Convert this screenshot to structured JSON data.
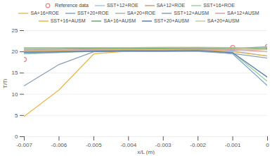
{
  "chart_data": {
    "type": "line",
    "x": [
      -0.007,
      -0.006,
      -0.005,
      -0.004,
      -0.003,
      -0.002,
      -0.001,
      0
    ],
    "x_label": "x/L (m)",
    "y_label": "T/Ti",
    "xlim": [
      -0.007,
      0
    ],
    "xticks": [
      -0.007,
      -0.006,
      -0.005,
      -0.004,
      -0.003,
      -0.002,
      -0.001,
      0
    ],
    "ylim": [
      0,
      25
    ],
    "yticks": [
      0,
      5,
      10,
      15,
      20,
      25
    ],
    "grid": true,
    "legend": "top",
    "series": [
      {
        "name": "Reference data",
        "color": "#f08080",
        "marker": "circle",
        "line_style": "none",
        "values": [
          18.2,
          null,
          null,
          null,
          null,
          null,
          21,
          21.2
        ]
      },
      {
        "name": "SST+12+ROE",
        "color": "#a9c4e8",
        "values": [
          19.8,
          20.1,
          20.3,
          20.4,
          20.4,
          20.5,
          20.2,
          19
        ]
      },
      {
        "name": "SA+12+ROE",
        "color": "#c9a27e",
        "values": [
          20,
          20.2,
          20.4,
          20.5,
          20.5,
          20.6,
          20.4,
          20.5
        ]
      },
      {
        "name": "SST+16+ROE",
        "color": "#9fcf9f",
        "values": [
          19.5,
          19.8,
          20.1,
          20.3,
          20.3,
          20.4,
          19.8,
          13
        ]
      },
      {
        "name": "SA+16+ROE",
        "color": "#e0c060",
        "values": [
          20.2,
          20.3,
          20.5,
          20.6,
          20.6,
          20.7,
          20.6,
          21
        ]
      },
      {
        "name": "SST+20+ROE",
        "color": "#7fa7c9",
        "values": [
          19.6,
          19.9,
          20.2,
          20.3,
          20.3,
          20.4,
          19.5,
          12
        ]
      },
      {
        "name": "SA+20+ROE",
        "color": "#b0b0b0",
        "values": [
          20.5,
          20.6,
          20.7,
          20.8,
          20.8,
          20.9,
          20.8,
          21.2
        ]
      },
      {
        "name": "SST+12+AUSM",
        "color": "#8a9fb8",
        "values": [
          12,
          17,
          20,
          20.1,
          20.1,
          20.1,
          19.6,
          18.5
        ]
      },
      {
        "name": "SA+12+AUSM",
        "color": "#d9a0a0",
        "values": [
          20.3,
          20.4,
          20.6,
          20.7,
          20.7,
          20.7,
          20.5,
          20
        ]
      },
      {
        "name": "SST+16+AUSM",
        "color": "#e8b84a",
        "values": [
          4.8,
          11,
          19.5,
          20.2,
          20.3,
          20.4,
          20,
          19
        ]
      },
      {
        "name": "SA+16+AUSM",
        "color": "#6fa86f",
        "values": [
          20.8,
          20.8,
          20.9,
          20.9,
          20.9,
          21,
          20.9,
          20.8
        ]
      },
      {
        "name": "SST+20+AUSM",
        "color": "#5b7fb0",
        "values": [
          19.9,
          20,
          20.1,
          20.2,
          20.2,
          20.3,
          19.8,
          14
        ]
      },
      {
        "name": "SA+20+AUSM",
        "color": "#c8c8a0",
        "values": [
          21,
          21,
          21,
          21,
          21.1,
          21.1,
          21,
          20.5
        ]
      }
    ]
  }
}
